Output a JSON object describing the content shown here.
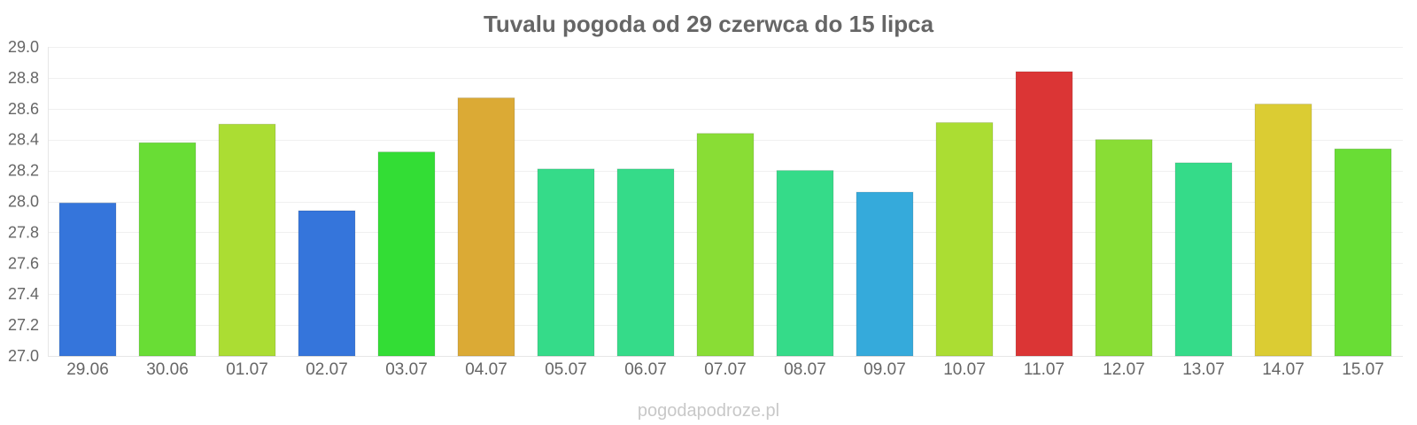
{
  "chart_data": {
    "type": "bar",
    "title": "Tuvalu pogoda od 29 czerwca do 15 lipca",
    "xlabel": "",
    "ylabel": "",
    "ylim": [
      27.0,
      29.0
    ],
    "yticks": [
      "27.0",
      "27.2",
      "27.4",
      "27.6",
      "27.8",
      "28.0",
      "28.2",
      "28.4",
      "28.6",
      "28.8",
      "29.0"
    ],
    "ytick_values": [
      27.0,
      27.2,
      27.4,
      27.6,
      27.8,
      28.0,
      28.2,
      28.4,
      28.6,
      28.8,
      29.0
    ],
    "grid": true,
    "legend": "none",
    "categories": [
      "29.06",
      "30.06",
      "01.07",
      "02.07",
      "03.07",
      "04.07",
      "05.07",
      "06.07",
      "07.07",
      "08.07",
      "09.07",
      "10.07",
      "11.07",
      "12.07",
      "13.07",
      "14.07",
      "15.07"
    ],
    "values": [
      27.99,
      28.38,
      28.5,
      27.94,
      28.32,
      28.67,
      28.21,
      28.21,
      28.44,
      28.2,
      28.06,
      28.51,
      28.84,
      28.4,
      28.25,
      28.63,
      28.34
    ],
    "colors": [
      "#3575db",
      "#69dd35",
      "#abdd33",
      "#3575db",
      "#33dd35",
      "#dbaa35",
      "#35db89",
      "#35db89",
      "#89dd35",
      "#35db89",
      "#35aadb",
      "#abdd33",
      "#db3535",
      "#89dd35",
      "#35db89",
      "#dbcc33",
      "#69dd35"
    ],
    "watermark": "pogodapodroze.pl"
  }
}
